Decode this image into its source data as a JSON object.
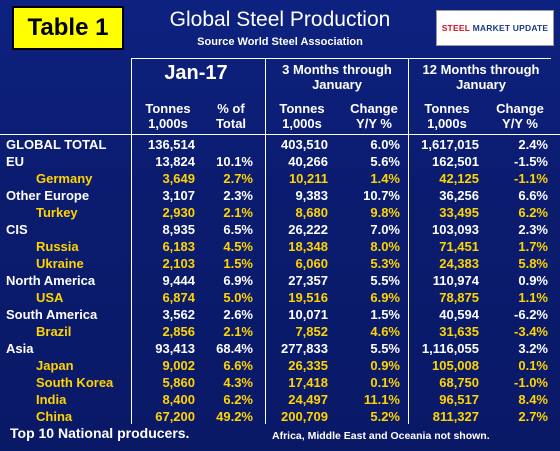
{
  "header": {
    "badge": "Table 1",
    "title": "Global Steel Production",
    "subtitle": "Source World Steel Association",
    "logo": {
      "part1": "STEEL",
      "part2": "MARKET UPDATE"
    }
  },
  "columns": {
    "group1": "Jan-17",
    "group2": "3 Months through January",
    "group3": "12 Months through January",
    "col1": "Tonnes 1,000s",
    "col2": "% of Total",
    "col3": "Tonnes 1,000s",
    "col4": "Change Y/Y %",
    "col5": "Tonnes 1,000s",
    "col6": "Change Y/Y %"
  },
  "rows": [
    {
      "name": "GLOBAL TOTAL",
      "sub": false,
      "v": [
        "136,514",
        "",
        "403,510",
        "6.0%",
        "1,617,015",
        "2.4%"
      ]
    },
    {
      "name": "EU",
      "sub": false,
      "v": [
        "13,824",
        "10.1%",
        "40,266",
        "5.6%",
        "162,501",
        "-1.5%"
      ]
    },
    {
      "name": "Germany",
      "sub": true,
      "v": [
        "3,649",
        "2.7%",
        "10,211",
        "1.4%",
        "42,125",
        "-1.1%"
      ]
    },
    {
      "name": "Other Europe",
      "sub": false,
      "v": [
        "3,107",
        "2.3%",
        "9,383",
        "10.7%",
        "36,256",
        "6.6%"
      ]
    },
    {
      "name": "Turkey",
      "sub": true,
      "v": [
        "2,930",
        "2.1%",
        "8,680",
        "9.8%",
        "33,495",
        "6.2%"
      ]
    },
    {
      "name": "CIS",
      "sub": false,
      "v": [
        "8,935",
        "6.5%",
        "26,222",
        "7.0%",
        "103,093",
        "2.3%"
      ]
    },
    {
      "name": "Russia",
      "sub": true,
      "v": [
        "6,183",
        "4.5%",
        "18,348",
        "8.0%",
        "71,451",
        "1.7%"
      ]
    },
    {
      "name": "Ukraine",
      "sub": true,
      "v": [
        "2,103",
        "1.5%",
        "6,060",
        "5.3%",
        "24,383",
        "5.8%"
      ]
    },
    {
      "name": "North America",
      "sub": false,
      "v": [
        "9,444",
        "6.9%",
        "27,357",
        "5.5%",
        "110,974",
        "0.9%"
      ]
    },
    {
      "name": "USA",
      "sub": true,
      "v": [
        "6,874",
        "5.0%",
        "19,516",
        "6.9%",
        "78,875",
        "1.1%"
      ]
    },
    {
      "name": "South America",
      "sub": false,
      "v": [
        "3,562",
        "2.6%",
        "10,071",
        "1.5%",
        "40,594",
        "-6.2%"
      ]
    },
    {
      "name": "Brazil",
      "sub": true,
      "v": [
        "2,856",
        "2.1%",
        "7,852",
        "4.6%",
        "31,635",
        "-3.4%"
      ]
    },
    {
      "name": "Asia",
      "sub": false,
      "v": [
        "93,413",
        "68.4%",
        "277,833",
        "5.5%",
        "1,116,055",
        "3.2%"
      ]
    },
    {
      "name": "Japan",
      "sub": true,
      "v": [
        "9,002",
        "6.6%",
        "26,335",
        "0.9%",
        "105,008",
        "0.1%"
      ]
    },
    {
      "name": "South Korea",
      "sub": true,
      "v": [
        "5,860",
        "4.3%",
        "17,418",
        "0.1%",
        "68,750",
        "-1.0%"
      ]
    },
    {
      "name": "India",
      "sub": true,
      "v": [
        "8,400",
        "6.2%",
        "24,497",
        "11.1%",
        "96,517",
        "8.4%"
      ]
    },
    {
      "name": "China",
      "sub": true,
      "v": [
        "67,200",
        "49.2%",
        "200,709",
        "5.2%",
        "811,327",
        "2.7%"
      ]
    }
  ],
  "footer": {
    "left": "Top 10 National producers.",
    "right": "Africa, Middle East and Oceania not shown."
  },
  "colors": {
    "background": "#0b1c70",
    "sub_text": "#ffd400",
    "badge": "#ffff00"
  }
}
